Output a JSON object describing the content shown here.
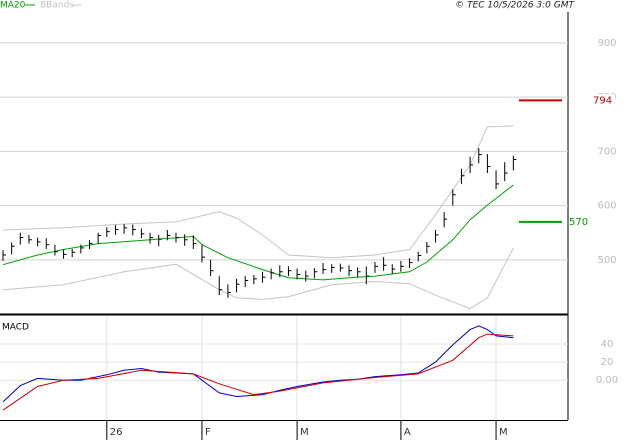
{
  "chart_data": {
    "type": "stock",
    "source": "© TEC 10/5/2026 3:0 GMT",
    "categories": [
      null,
      null,
      null,
      null,
      null,
      null,
      null,
      null,
      null,
      null,
      null,
      null,
      "26",
      null,
      null,
      null,
      null,
      null,
      null,
      null,
      null,
      null,
      null,
      "F",
      null,
      null,
      null,
      null,
      null,
      null,
      null,
      null,
      null,
      null,
      "M",
      null,
      null,
      null,
      null,
      null,
      null,
      null,
      null,
      null,
      null,
      null,
      "A",
      null,
      null,
      null,
      null,
      null,
      null,
      null,
      null,
      null,
      null,
      "M",
      null,
      null
    ],
    "high": [
      518,
      532,
      550,
      546,
      541,
      540,
      528,
      519,
      520,
      528,
      536,
      550,
      560,
      564,
      566,
      565,
      558,
      550,
      546,
      555,
      550,
      547,
      545,
      528,
      500,
      470,
      455,
      465,
      470,
      472,
      478,
      484,
      490,
      488,
      484,
      480,
      485,
      494,
      492,
      493,
      490,
      486,
      488,
      496,
      505,
      492,
      498,
      503,
      515,
      533,
      555,
      588,
      630,
      668,
      690,
      706,
      695,
      665,
      680,
      692
    ],
    "low": [
      498,
      510,
      528,
      530,
      525,
      520,
      508,
      502,
      505,
      512,
      520,
      530,
      542,
      546,
      548,
      545,
      540,
      530,
      525,
      536,
      532,
      526,
      520,
      495,
      470,
      435,
      430,
      440,
      450,
      455,
      458,
      464,
      468,
      470,
      464,
      460,
      466,
      474,
      476,
      478,
      470,
      468,
      455,
      476,
      480,
      474,
      478,
      485,
      497,
      512,
      532,
      560,
      600,
      640,
      660,
      678,
      660,
      630,
      645,
      665
    ],
    "close": [
      509,
      525,
      541,
      537,
      533,
      528,
      515,
      510,
      514,
      522,
      530,
      545,
      552,
      556,
      559,
      556,
      548,
      541,
      538,
      545,
      541,
      537,
      530,
      505,
      480,
      445,
      440,
      455,
      462,
      465,
      468,
      476,
      478,
      480,
      473,
      470,
      478,
      482,
      486,
      485,
      480,
      478,
      470,
      488,
      490,
      483,
      488,
      495,
      508,
      525,
      546,
      575,
      620,
      655,
      675,
      694,
      672,
      640,
      660,
      685
    ],
    "bar_color": "#000000",
    "ylim": [
      402,
      979
    ],
    "yticks": [
      500,
      600,
      700,
      800,
      900
    ],
    "grid": true,
    "ma": {
      "name": "MA20",
      "color": "#00a000",
      "x": [
        0,
        4,
        7,
        11,
        17,
        22,
        23,
        26,
        30,
        33,
        37,
        40,
        43,
        47,
        49,
        52,
        54,
        56,
        59
      ],
      "values": [
        491,
        509,
        519,
        530,
        537,
        543,
        528,
        504,
        482,
        467,
        463,
        467,
        470,
        478,
        496,
        537,
        574,
        601,
        638
      ]
    },
    "bands": {
      "name": "BBands",
      "color": "#c4c4c4",
      "x": [
        0,
        7,
        14,
        20,
        25,
        27,
        30,
        33,
        38,
        43,
        47,
        50,
        54,
        56,
        59
      ],
      "upper": [
        555,
        559,
        566,
        570,
        589,
        577,
        546,
        509,
        504,
        509,
        519,
        583,
        675,
        745,
        747
      ],
      "lower": [
        445,
        454,
        478,
        492,
        445,
        430,
        427,
        432,
        454,
        460,
        456,
        435,
        410,
        430,
        522
      ]
    },
    "levels": [
      {
        "value": 794,
        "color": "#c00000"
      },
      {
        "value": 570,
        "color": "#00a000"
      }
    ],
    "macd": {
      "title": "MACD",
      "ylim": [
        -44,
        71
      ],
      "yticks": [
        {
          "value": 0,
          "label": "0.00"
        },
        20,
        40
      ],
      "series": [
        {
          "color": "#0000cc",
          "x": [
            0,
            2,
            4,
            7,
            9,
            12,
            14,
            16,
            18,
            22,
            23,
            25,
            27,
            30,
            32,
            34,
            37,
            39,
            41,
            43,
            46,
            48,
            50,
            52,
            54,
            55,
            56,
            57,
            59
          ],
          "values": [
            -24,
            -6,
            2,
            0,
            0,
            6,
            11,
            13,
            9,
            7,
            0,
            -14,
            -18,
            -16,
            -11,
            -7,
            -2,
            0,
            1,
            4,
            6,
            8,
            20,
            39,
            56,
            60,
            56,
            49,
            47
          ]
        },
        {
          "color": "#cc0000",
          "x": [
            0,
            4,
            7,
            11,
            16,
            22,
            25,
            29,
            32,
            37,
            43,
            48,
            52,
            55,
            56,
            59
          ],
          "values": [
            -33,
            -7,
            0,
            2,
            11,
            7,
            -4,
            -16,
            -12,
            -3,
            3,
            7,
            22,
            47,
            51,
            49
          ]
        }
      ]
    }
  }
}
